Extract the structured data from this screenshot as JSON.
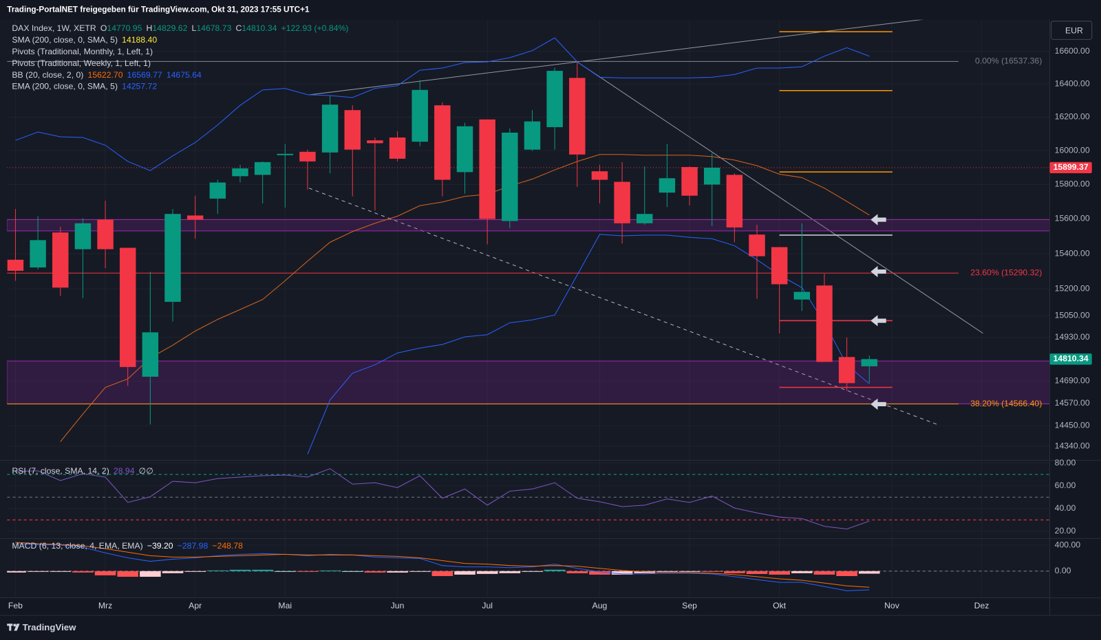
{
  "header": {
    "title": "Trading-PortalNET freigegeben für TradingView.com, Okt 31, 2023 17:55 UTC+1"
  },
  "currency": "EUR",
  "brand": "TradingView",
  "chart_data": [
    {
      "type": "candlestick",
      "scale": "log",
      "categories": [
        null,
        null,
        null,
        null,
        null,
        null,
        null,
        null,
        null,
        null,
        null,
        null,
        null,
        null,
        null,
        null,
        null,
        null,
        null,
        null,
        null,
        null,
        null,
        null,
        null,
        null,
        null,
        null,
        null,
        null,
        null,
        null,
        null,
        null,
        null,
        null,
        null,
        null,
        null
      ],
      "open": [
        15366,
        15322,
        15522,
        15426,
        15596,
        15434,
        14714,
        15128,
        15620,
        15718,
        15849,
        15857,
        15973,
        15993,
        15989,
        16242,
        16061,
        16078,
        16053,
        16271,
        15873,
        16186,
        15588,
        16006,
        16140,
        16437,
        15878,
        15816,
        15575,
        15753,
        15903,
        15800,
        15857,
        15510,
        15438,
        15141,
        15220,
        14822,
        14770.95
      ],
      "high": [
        15657,
        15616,
        15555,
        15604,
        15706,
        15434,
        15298,
        15657,
        15735,
        15828,
        15916,
        15936,
        16040,
        16006,
        16330,
        16271,
        16078,
        16115,
        16424,
        16288,
        16166,
        16186,
        16132,
        16242,
        16500,
        16531,
        15916,
        15932,
        15907,
        16040,
        15907,
        15985,
        15866,
        15567,
        15438,
        15575,
        15286,
        14930,
        14829.62
      ],
      "low": [
        15247,
        15311,
        15161,
        15149,
        15318,
        14664,
        14456,
        15019,
        15486,
        15629,
        15812,
        15690,
        15665,
        15771,
        15866,
        15731,
        15649,
        15936,
        16027,
        15731,
        15747,
        15454,
        15547,
        15998,
        16006,
        15787,
        15690,
        15458,
        15567,
        15669,
        15678,
        15559,
        15466,
        15145,
        14952,
        15077,
        14795,
        14638,
        14678.73
      ],
      "close": [
        15303,
        15478,
        15208,
        15575,
        15426,
        14767,
        14958,
        15629,
        15596,
        15812,
        15895,
        15932,
        15981,
        15936,
        16275,
        16006,
        16044,
        15952,
        16364,
        15828,
        16145,
        15600,
        16107,
        16174,
        16480,
        15977,
        15828,
        15575,
        15629,
        15837,
        15735,
        15899,
        15551,
        15386,
        15227,
        15184,
        14795,
        14679,
        14810.34
      ],
      "up_color": "#089981",
      "down_color": "#f23645",
      "xlim": [
        -0.375,
        46.03
      ],
      "xticks": [
        {
          "value": 0,
          "label": "Feb"
        },
        {
          "value": 4,
          "label": "Mrz"
        },
        {
          "value": 8,
          "label": "Apr"
        },
        {
          "value": 12,
          "label": "Mai"
        },
        {
          "value": 17,
          "label": "Jun"
        },
        {
          "value": 21,
          "label": "Jul"
        },
        {
          "value": 26,
          "label": "Aug"
        },
        {
          "value": 30,
          "label": "Sep"
        },
        {
          "value": 34,
          "label": "Okt"
        },
        {
          "value": 39,
          "label": "Nov"
        },
        {
          "value": 43,
          "label": "Dez"
        }
      ],
      "ylim": [
        14269,
        16795
      ],
      "yticks": [
        {
          "value": 16600,
          "label": "16600.00"
        },
        {
          "value": 16400,
          "label": "16400.00"
        },
        {
          "value": 16200,
          "label": "16200.00"
        },
        {
          "value": 16000,
          "label": "16000.00"
        },
        {
          "value": 15800,
          "label": "15800.00"
        },
        {
          "value": 15600,
          "label": "15600.00"
        },
        {
          "value": 15400,
          "label": "15400.00"
        },
        {
          "value": 15200,
          "label": "15200.00"
        },
        {
          "value": 15050,
          "label": "15050.00"
        },
        {
          "value": 14930,
          "label": "14930.00"
        },
        {
          "value": 14690,
          "label": "14690.00"
        },
        {
          "value": 14570,
          "label": "14570.00"
        },
        {
          "value": 14450,
          "label": "14450.00"
        },
        {
          "value": 14340,
          "label": "14340.00"
        }
      ],
      "grid": true,
      "series": [
        {
          "color": "#2962ff",
          "values": [
            16061,
            16111,
            16082,
            16078,
            16032,
            15936,
            15882,
            15969,
            16048,
            16153,
            16271,
            16364,
            16373,
            16335,
            16330,
            16318,
            16373,
            16390,
            16484,
            16497,
            16531,
            16535,
            16561,
            16604,
            16683,
            16535,
            16441,
            16437,
            16437,
            16437,
            16437,
            16441,
            16458,
            16497,
            16497,
            16505,
            16570,
            16622,
            16569.77
          ]
        },
        {
          "color": "#2962ff",
          "values": [
            null,
            null,
            null,
            null,
            null,
            null,
            null,
            null,
            null,
            null,
            null,
            null,
            null,
            14297,
            14588,
            14733,
            14779,
            14844,
            14871,
            14891,
            14933,
            14945,
            15011,
            15027,
            15054,
            15279,
            15511,
            15503,
            15507,
            15507,
            15494,
            15486,
            15446,
            15366,
            15279,
            15208,
            15011,
            14779,
            14675.64
          ]
        },
        {
          "color": "#d9651b",
          "values": [
            null,
            null,
            14364,
            14512,
            14656,
            14702,
            14817,
            14887,
            14965,
            15030,
            15085,
            15141,
            15247,
            15358,
            15466,
            15527,
            15575,
            15616,
            15677,
            15698,
            15731,
            15743,
            15792,
            15832,
            15886,
            15936,
            15977,
            15977,
            15973,
            15973,
            15973,
            15965,
            15944,
            15911,
            15861,
            15841,
            15779,
            15702,
            15622.7
          ]
        }
      ],
      "zones": [
        {
          "from": 15531,
          "to": 15596,
          "color": "#9c27b0"
        },
        {
          "from": 14566.4,
          "to": 14800,
          "color": "#9c27b0"
        }
      ],
      "fib": [
        {
          "value": 16537.36,
          "label": "0.00% (16537.36)",
          "color": "#787b86"
        },
        {
          "value": 15290.32,
          "label": "23.60% (15290.32)",
          "color": "#f23645"
        },
        {
          "value": 14566.4,
          "label": "38.20% (14566.40)",
          "color": "#ff9800"
        }
      ],
      "pivots": [
        {
          "value": 16721,
          "color": "#ff9800"
        },
        {
          "value": 16360,
          "color": "#ff9800"
        },
        {
          "value": 15874,
          "color": "#ff9800"
        },
        {
          "value": 15507,
          "color": "#d1d4dc"
        },
        {
          "value": 15023,
          "color": "#f23645"
        },
        {
          "value": 14656,
          "color": "#f23645"
        }
      ],
      "levels": [
        {
          "value": 15899.37,
          "label": "15899.37",
          "color": "#f23645"
        }
      ],
      "legend": [
        [
          {
            "text": "DAX Index, 1W, XETR",
            "color": "#d1d4dc"
          },
          {
            "text": "O",
            "color": "#d1d4dc"
          },
          {
            "text": "14770.95",
            "color": "#089981"
          },
          {
            "text": "H",
            "color": "#d1d4dc"
          },
          {
            "text": "14829.62",
            "color": "#089981"
          },
          {
            "text": "L",
            "color": "#d1d4dc"
          },
          {
            "text": "14678.73",
            "color": "#089981"
          },
          {
            "text": "C",
            "color": "#d1d4dc"
          },
          {
            "text": "14810.34",
            "color": "#089981"
          },
          {
            "text": "+122.93 (+0.84%)",
            "color": "#089981"
          }
        ],
        [
          {
            "text": "SMA (200, close, 0, SMA, 5)",
            "color": "#d1d4dc"
          },
          {
            "text": "14188.40",
            "color": "#ffeb3b"
          }
        ],
        [
          {
            "text": "Pivots (Traditional, Monthly, 1, Left, 1)",
            "color": "#d1d4dc"
          }
        ],
        [
          {
            "text": "Pivots (Traditional, Weekly, 1, Left, 1)",
            "color": "#d1d4dc"
          }
        ],
        [
          {
            "text": "BB (20, close, 2, 0)",
            "color": "#d1d4dc"
          },
          {
            "text": "15622.70",
            "color": "#ff6d00"
          },
          {
            "text": "16569.77",
            "color": "#2962ff"
          },
          {
            "text": "14675.64",
            "color": "#2962ff"
          }
        ],
        [
          {
            "text": "EMA (200, close, 0, SMA, 5)",
            "color": "#d1d4dc"
          },
          {
            "text": "14257.72",
            "color": "#2962ff"
          }
        ]
      ]
    },
    {
      "type": "line",
      "values": [
        72.6,
        73.2,
        64.6,
        70.7,
        67.7,
        45.4,
        50.4,
        64.0,
        62.7,
        66.4,
        67.7,
        68.9,
        69.5,
        67.7,
        75.1,
        61.5,
        62.7,
        58.4,
        68.9,
        49.1,
        57.2,
        43.0,
        55.3,
        57.2,
        62.7,
        49.1,
        46.0,
        41.7,
        43.0,
        48.5,
        45.4,
        51.0,
        40.5,
        36.2,
        32.5,
        31.2,
        24.4,
        22.0,
        28.94
      ],
      "color": "#7e57c2",
      "ylim": [
        13.95,
        81.85
      ],
      "yticks": [
        {
          "value": 80,
          "label": "80.00"
        },
        {
          "value": 60,
          "label": "60.00"
        },
        {
          "value": 40,
          "label": "40.00"
        },
        {
          "value": 20,
          "label": "20.00"
        }
      ],
      "hlines": [
        {
          "value": 70,
          "color": "#089981"
        },
        {
          "value": 50,
          "color": "#787b86"
        },
        {
          "value": 30,
          "color": "#f23645"
        }
      ],
      "legend": [
        [
          {
            "text": "RSI (7, close, SMA, 14, 2)",
            "color": "#d1d4dc"
          },
          {
            "text": "28.94",
            "color": "#7e57c2"
          },
          {
            "text": "∅",
            "color": "#d1d4dc"
          },
          {
            "text": "∅",
            "color": "#d1d4dc"
          }
        ]
      ]
    },
    {
      "type": "macd",
      "histogram": [
        -21,
        -11,
        -11,
        -21,
        -65,
        -87,
        -87,
        -32,
        -11,
        11,
        21,
        21,
        0,
        -11,
        10,
        0,
        -22,
        -22,
        -10,
        -76,
        -54,
        -43,
        -32,
        -11,
        22,
        -33,
        -54,
        -54,
        -32,
        -10,
        -10,
        -11,
        -32,
        -44,
        -54,
        -32,
        -54,
        -76,
        -39.2
      ],
      "hist_colors": [
        "#26a69a",
        "#b2dfdb",
        "#ff5252",
        "#ffcdd2"
      ],
      "series": [
        {
          "color": "#2962ff",
          "values": [
            422,
            411,
            400,
            368,
            281,
            205,
            151,
            184,
            205,
            238,
            259,
            270,
            259,
            238,
            259,
            249,
            216,
            205,
            195,
            86,
            65,
            65,
            54,
            65,
            108,
            43,
            -11,
            -43,
            -43,
            -32,
            -32,
            -43,
            -86,
            -130,
            -173,
            -173,
            -238,
            -303,
            -287.98
          ]
        },
        {
          "color": "#ff6d00",
          "values": [
            443,
            422,
            411,
            389,
            346,
            292,
            238,
            216,
            216,
            227,
            238,
            249,
            259,
            249,
            249,
            249,
            238,
            227,
            205,
            162,
            119,
            108,
            86,
            76,
            86,
            76,
            43,
            11,
            -11,
            -22,
            -22,
            -32,
            -54,
            -86,
            -119,
            -141,
            -184,
            -227,
            -248.78
          ]
        }
      ],
      "ylim": [
        -410.8,
        497.3
      ],
      "yticks": [
        {
          "value": 400,
          "label": "400.00"
        },
        {
          "value": 0,
          "label": "0.00"
        }
      ],
      "hlines": [
        {
          "value": 0,
          "color": "#787b86"
        }
      ],
      "legend": [
        [
          {
            "text": "MACD (6, 13, close, 4, EMA, EMA)",
            "color": "#d1d4dc"
          },
          {
            "text": "−39.20",
            "color": "#ffffff"
          },
          {
            "text": "−287.98",
            "color": "#2962ff"
          },
          {
            "text": "−248.78",
            "color": "#ff6d00"
          }
        ]
      ]
    }
  ]
}
